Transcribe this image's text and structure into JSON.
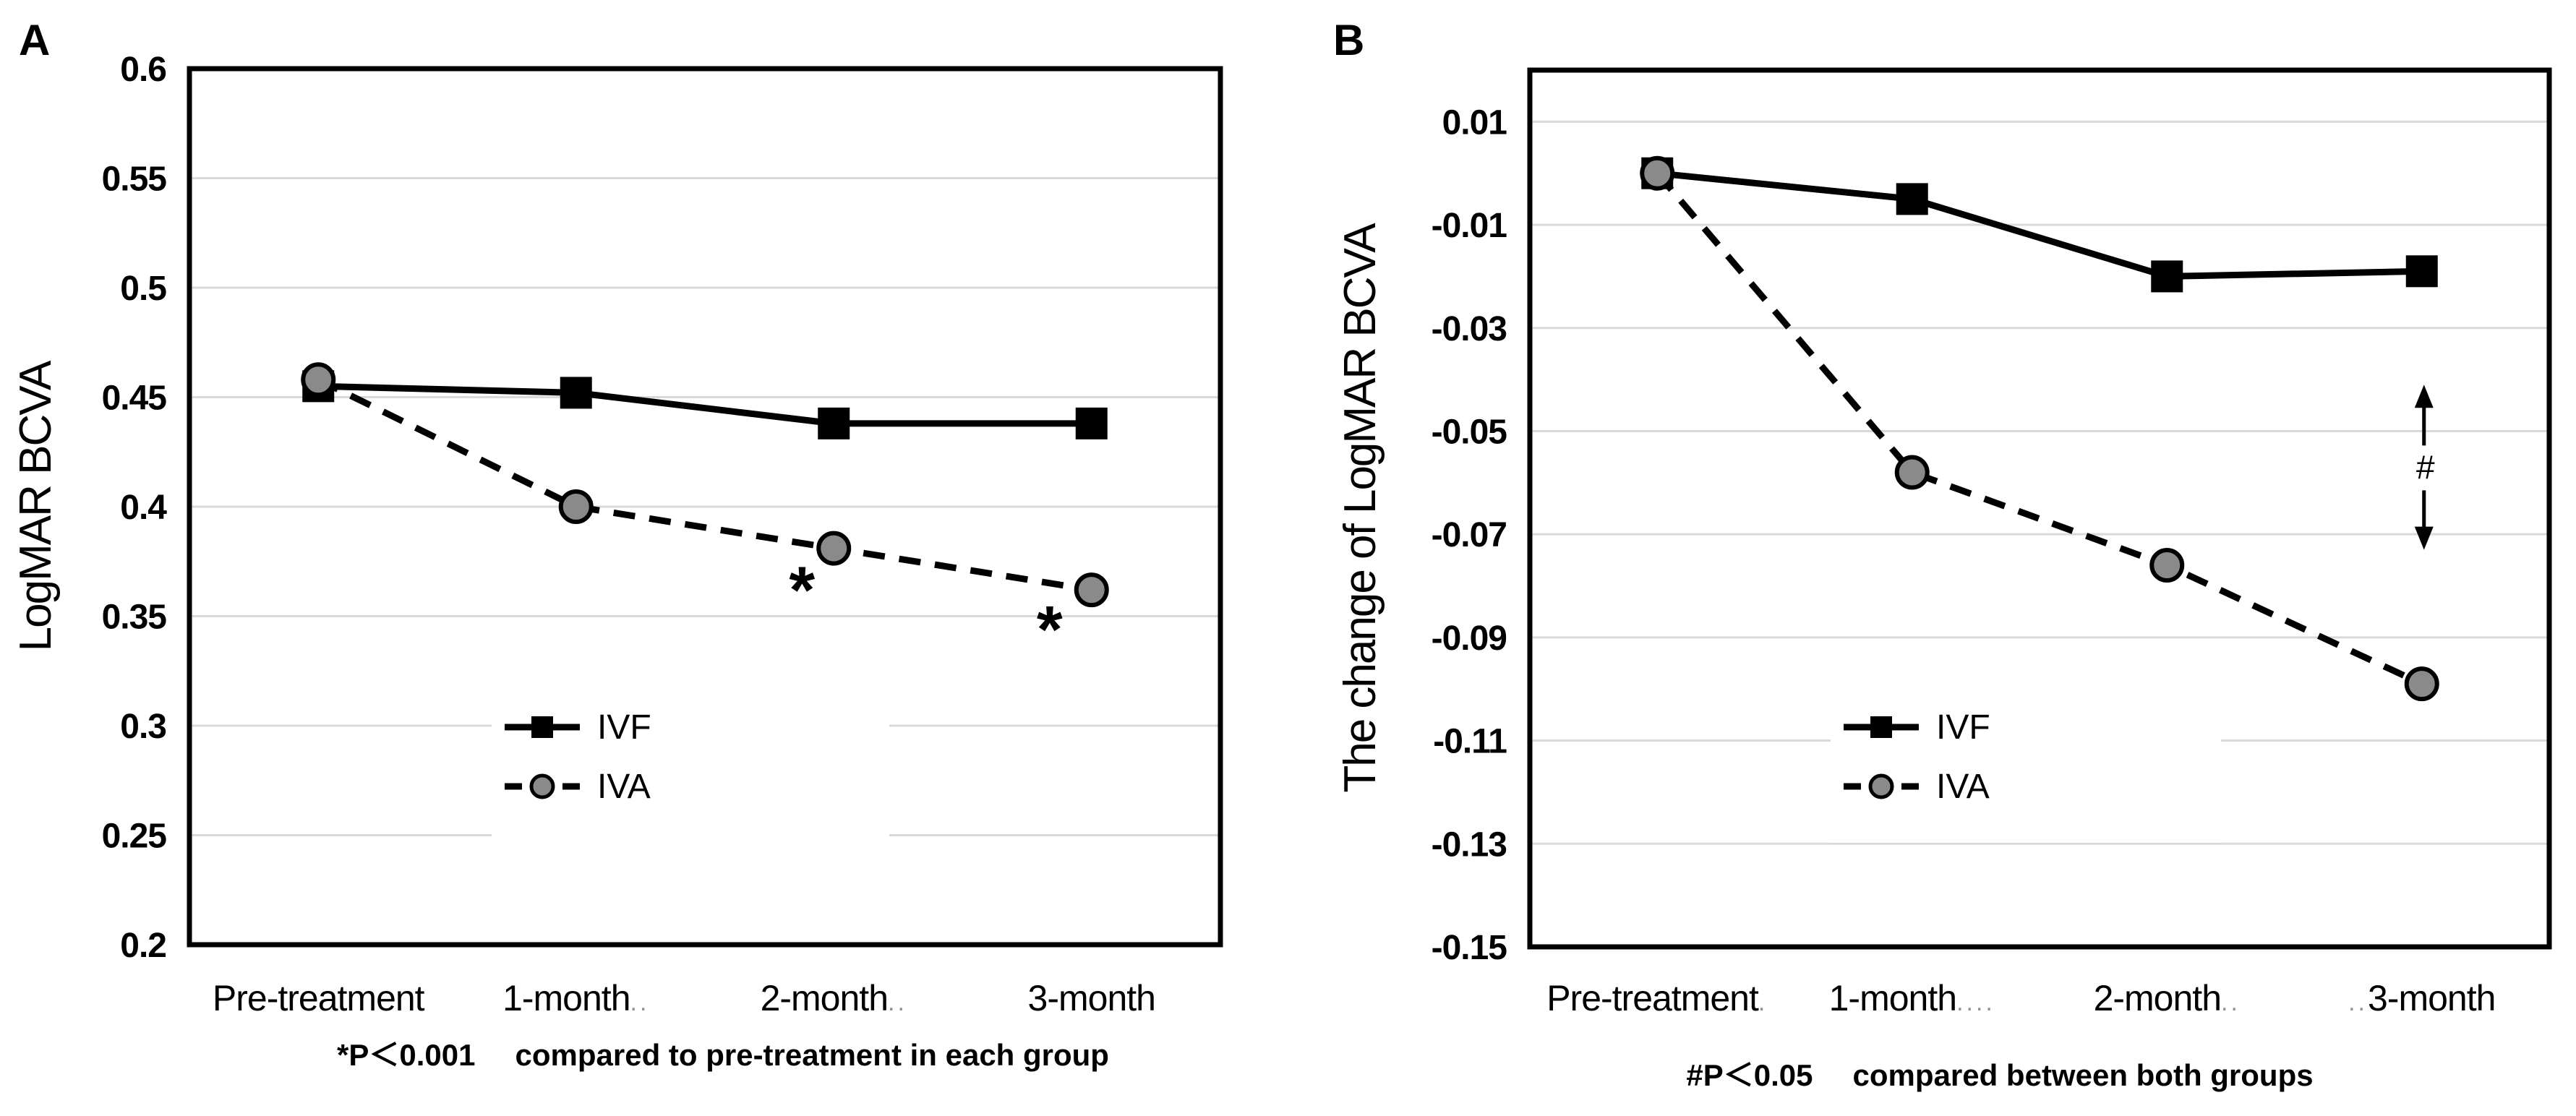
{
  "figure": {
    "background": "#ffffff",
    "description_colors": {
      "series_line": "#000000",
      "circle_marker_fill": "#8a8a8a",
      "gridline": "#d9d9d9",
      "label_dots": "#8f8f8f",
      "hash_annotation": "#444444"
    }
  },
  "chart_data": [
    {
      "type": "line",
      "panel_label": "A",
      "title": "",
      "xlabel": "",
      "ylabel": "LogMAR BCVA",
      "ylim": [
        0.2,
        0.6
      ],
      "yticks": [
        0.6,
        0.55,
        0.5,
        0.45,
        0.4,
        0.35,
        0.3,
        0.25,
        0.2
      ],
      "ytick_labels": [
        "0.6",
        "0.55",
        "0.5",
        "0.45",
        "0.4",
        "0.35",
        "0.3",
        "0.25",
        "0.2"
      ],
      "categories": [
        "Pre-treatment",
        "1-month",
        "2-month",
        "3-month"
      ],
      "category_prefix_dots": [
        "",
        "",
        "",
        ""
      ],
      "category_suffix_dots": [
        "",
        "..",
        "..",
        ""
      ],
      "grid": true,
      "legend_position": "inside-lower-middle",
      "series": [
        {
          "name": "IVF",
          "marker": "square",
          "line": "solid",
          "values": [
            0.455,
            0.452,
            0.438,
            0.438
          ]
        },
        {
          "name": "IVA",
          "marker": "circle",
          "line": "dashed",
          "values": [
            0.458,
            0.4,
            0.381,
            0.362
          ]
        }
      ],
      "annotations": [
        {
          "type": "text",
          "label": "*",
          "x_index": 2,
          "value": 0.368,
          "dx": -44
        },
        {
          "type": "text",
          "label": "*",
          "x_index": 3,
          "value": 0.35,
          "dx": -58
        }
      ],
      "footnote": {
        "sig": "*P＜0.001",
        "rest": "compared to pre-treatment in each group"
      },
      "layout": {
        "plot": [
          262,
          95,
          1688,
          1307
        ],
        "ytick_x": 230,
        "ylabel_x": 70,
        "panel_label_xy": [
          26,
          76
        ],
        "legend_box": [
          680,
          952,
          550,
          212
        ],
        "legend_swatch_x": 698,
        "footnote_xy": [
          1000,
          1474
        ],
        "xlabel_y": 1398
      }
    },
    {
      "type": "line",
      "panel_label": "B",
      "title": "",
      "xlabel": "",
      "ylabel": "The change of LogMAR BCVA",
      "ylim": [
        -0.15,
        0.02
      ],
      "yticks": [
        0.01,
        -0.01,
        -0.03,
        -0.05,
        -0.07,
        -0.09,
        -0.11,
        -0.13,
        -0.15
      ],
      "ytick_labels": [
        "0.01",
        "-0.01",
        "-0.03",
        "-0.05",
        "-0.07",
        "-0.09",
        "-0.11",
        "-0.13",
        "-0.15"
      ],
      "categories": [
        "Pre-treatment",
        "1-month",
        "2-month",
        "3-month"
      ],
      "category_prefix_dots": [
        "",
        "",
        "",
        ".."
      ],
      "category_suffix_dots": [
        ".",
        "....",
        "..",
        ""
      ],
      "grid": true,
      "legend_position": "inside-lower-middle",
      "series": [
        {
          "name": "IVF",
          "marker": "square",
          "line": "solid",
          "values": [
            0.0,
            -0.005,
            -0.02,
            -0.019
          ]
        },
        {
          "name": "IVA",
          "marker": "circle",
          "line": "dashed",
          "values": [
            0.0,
            -0.058,
            -0.076,
            -0.099
          ]
        }
      ],
      "annotations": [
        {
          "type": "range_arrow",
          "label": "#",
          "x_index": 3,
          "value_top": -0.041,
          "value_bottom": -0.073,
          "dx": 3
        }
      ],
      "footnote": {
        "sig": "#P＜0.05",
        "rest": "compared between both groups"
      },
      "layout": {
        "plot": [
          2116,
          97,
          3526,
          1310
        ],
        "ytick_x": 2084,
        "ylabel_x": 1902,
        "panel_label_xy": [
          1844,
          76
        ],
        "legend_box": [
          2532,
          952,
          540,
          214
        ],
        "legend_swatch_x": 2550,
        "footnote_xy": [
          2766,
          1502
        ],
        "xlabel_y": 1398
      }
    }
  ]
}
